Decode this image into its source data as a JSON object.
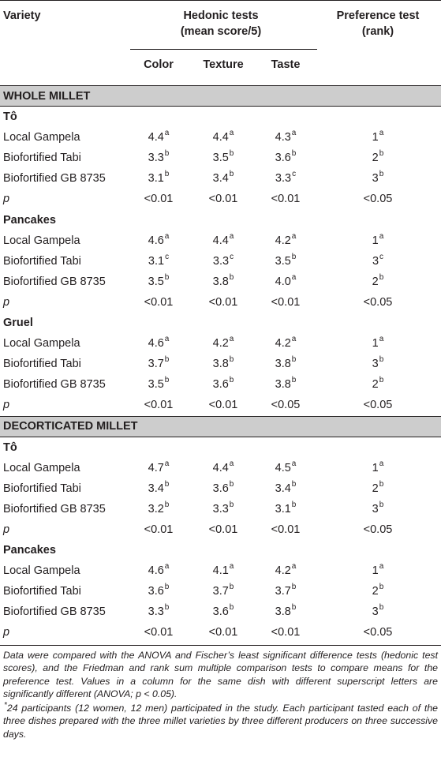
{
  "header": {
    "variety": "Variety",
    "hedonic_line1": "Hedonic tests",
    "hedonic_line2": "(mean score/5)",
    "preference_line1": "Preference test",
    "preference_line2": "(rank)",
    "color": "Color",
    "texture": "Texture",
    "taste": "Taste"
  },
  "sections": [
    {
      "title": "WHOLE MILLET",
      "dishes": [
        {
          "name": "Tô",
          "rows": [
            {
              "variety": "Local Gampela",
              "color": "4.4",
              "color_sup": "a",
              "texture": "4.4",
              "texture_sup": "a",
              "taste": "4.3",
              "taste_sup": "a",
              "rank": "1",
              "rank_sup": "a"
            },
            {
              "variety": "Biofortified Tabi",
              "color": "3.3",
              "color_sup": "b",
              "texture": "3.5",
              "texture_sup": "b",
              "taste": "3.6",
              "taste_sup": "b",
              "rank": "2",
              "rank_sup": "b"
            },
            {
              "variety": "Biofortified GB 8735",
              "color": "3.1",
              "color_sup": "b",
              "texture": "3.4",
              "texture_sup": "b",
              "taste": "3.3",
              "taste_sup": "c",
              "rank": "3",
              "rank_sup": "b"
            }
          ],
          "p": {
            "label": "p",
            "color": "<0.01",
            "texture": "<0.01",
            "taste": "<0.01",
            "rank": "<0.05"
          }
        },
        {
          "name": "Pancakes",
          "rows": [
            {
              "variety": "Local Gampela",
              "color": "4.6",
              "color_sup": "a",
              "texture": "4.4",
              "texture_sup": "a",
              "taste": "4.2",
              "taste_sup": "a",
              "rank": "1",
              "rank_sup": "a"
            },
            {
              "variety": "Biofortified Tabi",
              "color": "3.1",
              "color_sup": "c",
              "texture": "3.3",
              "texture_sup": "c",
              "taste": "3.5",
              "taste_sup": "b",
              "rank": "3",
              "rank_sup": "c"
            },
            {
              "variety": "Biofortified GB 8735",
              "color": "3.5",
              "color_sup": "b",
              "texture": "3.8",
              "texture_sup": "b",
              "taste": "4.0",
              "taste_sup": "a",
              "rank": "2",
              "rank_sup": "b"
            }
          ],
          "p": {
            "label": "p",
            "color": "<0.01",
            "texture": "<0.01",
            "taste": "<0.01",
            "rank": "<0.05"
          }
        },
        {
          "name": "Gruel",
          "rows": [
            {
              "variety": "Local Gampela",
              "color": "4.6",
              "color_sup": "a",
              "texture": "4.2",
              "texture_sup": "a",
              "taste": "4.2",
              "taste_sup": "a",
              "rank": "1",
              "rank_sup": "a"
            },
            {
              "variety": "Biofortified Tabi",
              "color": "3.7",
              "color_sup": "b",
              "texture": "3.8",
              "texture_sup": "b",
              "taste": "3.8",
              "taste_sup": "b",
              "rank": "3",
              "rank_sup": "b"
            },
            {
              "variety": "Biofortified GB 8735",
              "color": "3.5",
              "color_sup": "b",
              "texture": "3.6",
              "texture_sup": "b",
              "taste": "3.8",
              "taste_sup": "b",
              "rank": "2",
              "rank_sup": "b"
            }
          ],
          "p": {
            "label": "p",
            "color": "<0.01",
            "texture": "<0.01",
            "taste": "<0.05",
            "rank": "<0.05"
          }
        }
      ]
    },
    {
      "title": "DECORTICATED MILLET",
      "dishes": [
        {
          "name": "Tô",
          "rows": [
            {
              "variety": "Local Gampela",
              "color": "4.7",
              "color_sup": "a",
              "texture": "4.4",
              "texture_sup": "a",
              "taste": "4.5",
              "taste_sup": "a",
              "rank": "1",
              "rank_sup": "a"
            },
            {
              "variety": "Biofortified Tabi",
              "color": "3.4",
              "color_sup": "b",
              "texture": "3.6",
              "texture_sup": "b",
              "taste": "3.4",
              "taste_sup": "b",
              "rank": "2",
              "rank_sup": "b"
            },
            {
              "variety": "Biofortified GB 8735",
              "color": "3.2",
              "color_sup": "b",
              "texture": "3.3",
              "texture_sup": "b",
              "taste": "3.1",
              "taste_sup": "b",
              "rank": "3",
              "rank_sup": "b"
            }
          ],
          "p": {
            "label": "p",
            "color": "<0.01",
            "texture": "<0.01",
            "taste": "<0.01",
            "rank": "<0.05"
          }
        },
        {
          "name": "Pancakes",
          "rows": [
            {
              "variety": "Local Gampela",
              "color": "4.6",
              "color_sup": "a",
              "texture": "4.1",
              "texture_sup": "a",
              "taste": "4.2",
              "taste_sup": "a",
              "rank": "1",
              "rank_sup": "a"
            },
            {
              "variety": "Biofortified Tabi",
              "color": "3.6",
              "color_sup": "b",
              "texture": "3.7",
              "texture_sup": "b",
              "taste": "3.7",
              "taste_sup": "b",
              "rank": "2",
              "rank_sup": "b"
            },
            {
              "variety": "Biofortified GB 8735",
              "color": "3.3",
              "color_sup": "b",
              "texture": "3.6",
              "texture_sup": "b",
              "taste": "3.8",
              "taste_sup": "b",
              "rank": "3",
              "rank_sup": "b"
            }
          ],
          "p": {
            "label": "p",
            "color": "<0.01",
            "texture": "<0.01",
            "taste": "<0.01",
            "rank": "<0.05"
          }
        }
      ]
    }
  ],
  "footnotes": {
    "main": "Data were compared with the ANOVA and Fischer’s least significant difference tests (hedonic test scores), and the Friedman and rank sum multiple comparison tests to compare means for the preference test. Values in a column for the same dish with different superscript letters are significantly different (ANOVA; p < 0.05).",
    "star": "*",
    "participants": "24 participants (12 women, 12 men) participated in the study. Each participant tasted each of the three dishes prepared with the three millet varieties by three different producers on three successive days."
  },
  "colors": {
    "section_band": "#cdcdcd",
    "text": "#231f20"
  }
}
